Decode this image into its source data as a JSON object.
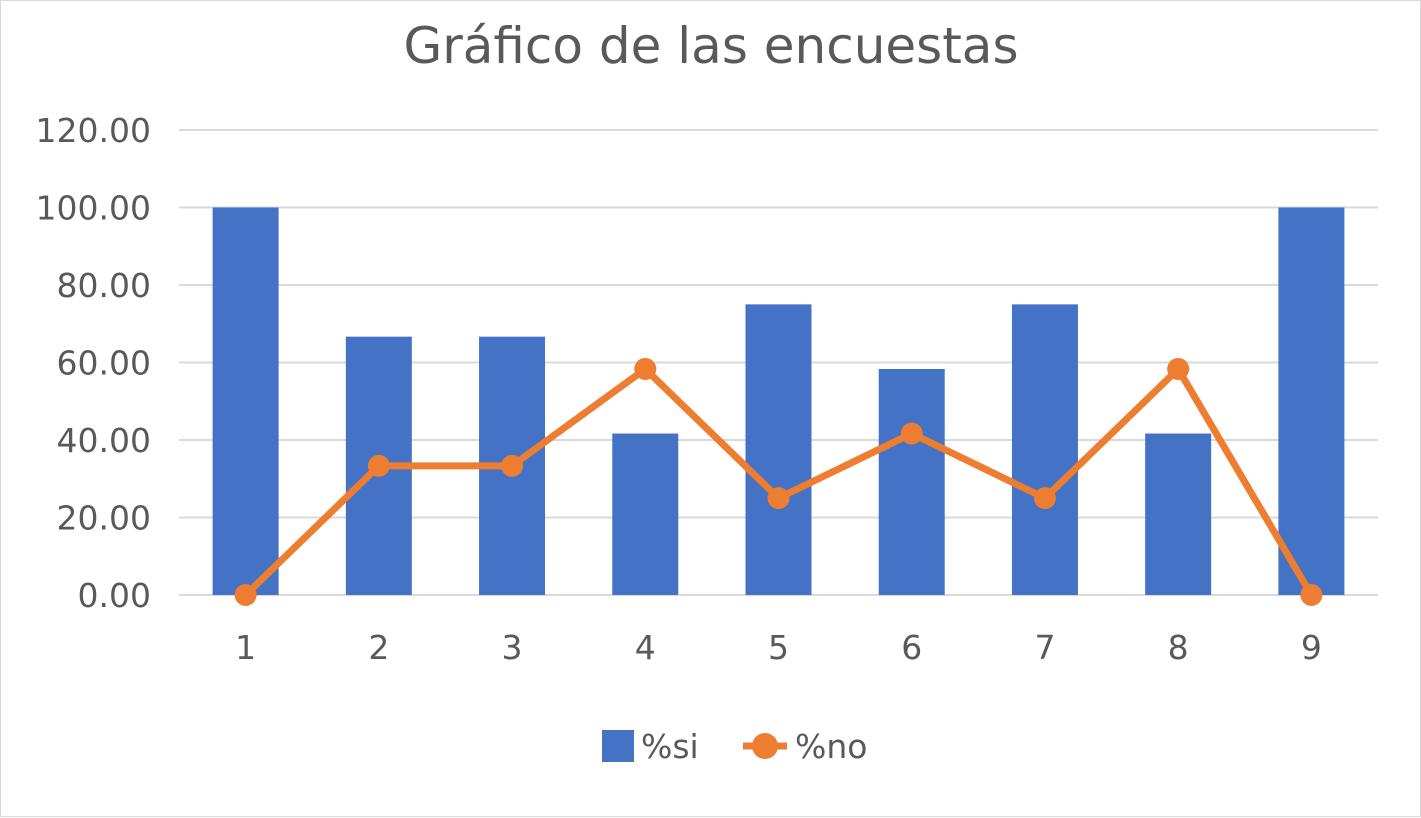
{
  "chart_data": {
    "type": "bar",
    "title": "Gráfico de las encuestas",
    "xlabel": "",
    "ylabel": "",
    "categories": [
      "1",
      "2",
      "3",
      "4",
      "5",
      "6",
      "7",
      "8",
      "9"
    ],
    "ylim": [
      0,
      120
    ],
    "yticks": [
      "0.00",
      "20.00",
      "40.00",
      "60.00",
      "80.00",
      "100.00",
      "120.00"
    ],
    "grid": true,
    "legend_position": "bottom",
    "series": [
      {
        "name": "%si",
        "type": "bar",
        "color": "#4472c4",
        "values": [
          100,
          66.67,
          66.67,
          41.67,
          75,
          58.33,
          75,
          41.67,
          100
        ]
      },
      {
        "name": "%no",
        "type": "line",
        "marker": "circle",
        "color": "#ed7d31",
        "values": [
          0,
          33.33,
          33.33,
          58.33,
          25,
          41.67,
          25,
          58.33,
          0
        ]
      }
    ]
  }
}
